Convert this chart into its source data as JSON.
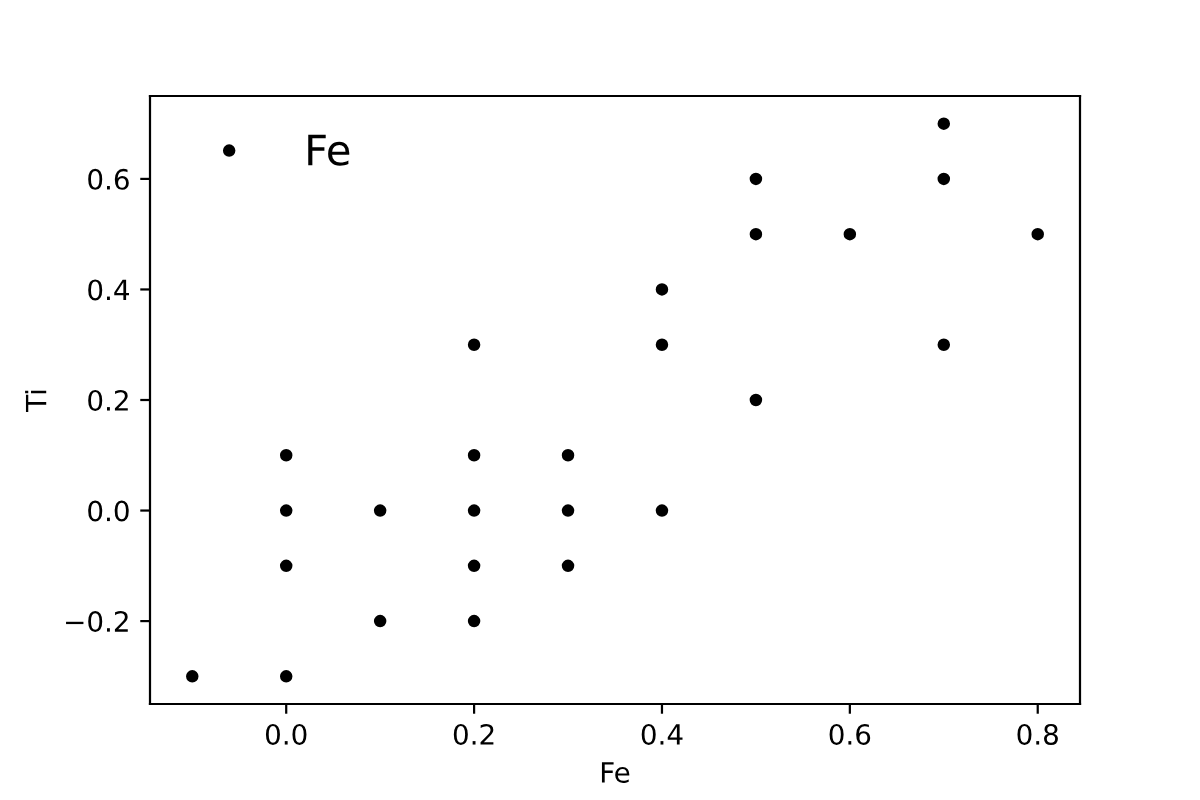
{
  "chart_data": {
    "type": "scatter",
    "xlabel": "Fe",
    "ylabel": "Ti",
    "xlim": [
      -0.145,
      0.845
    ],
    "ylim": [
      -0.35,
      0.75
    ],
    "xticks": [
      {
        "value": 0,
        "label": "0.0"
      },
      0.2,
      0.4,
      0.6,
      0.8
    ],
    "yticks": [
      {
        "value": -0.2,
        "label": "−0.2"
      },
      {
        "value": 0,
        "label": "0.0"
      },
      0.2,
      0.4,
      0.6
    ],
    "legend": "top left",
    "marker": "circle",
    "grid": false,
    "series": [
      {
        "name": "Fe",
        "color": "#000000",
        "x": [
          -0.1,
          0,
          0,
          0,
          0,
          0.1,
          0.1,
          0.2,
          0.2,
          0.2,
          0.2,
          0.2,
          0.3,
          0.3,
          0.3,
          0.4,
          0.4,
          0.4,
          0.5,
          0.5,
          0.5,
          0.6,
          0.7,
          0.7,
          0.7,
          0.8
        ],
        "values": [
          -0.3,
          0.1,
          0,
          -0.1,
          -0.3,
          0,
          -0.2,
          0.3,
          0.1,
          0,
          -0.1,
          -0.2,
          0.1,
          0,
          -0.1,
          0.4,
          0.3,
          0,
          0.6,
          0.5,
          0.2,
          0.5,
          0.7,
          0.6,
          0.3,
          0.5
        ]
      }
    ]
  }
}
